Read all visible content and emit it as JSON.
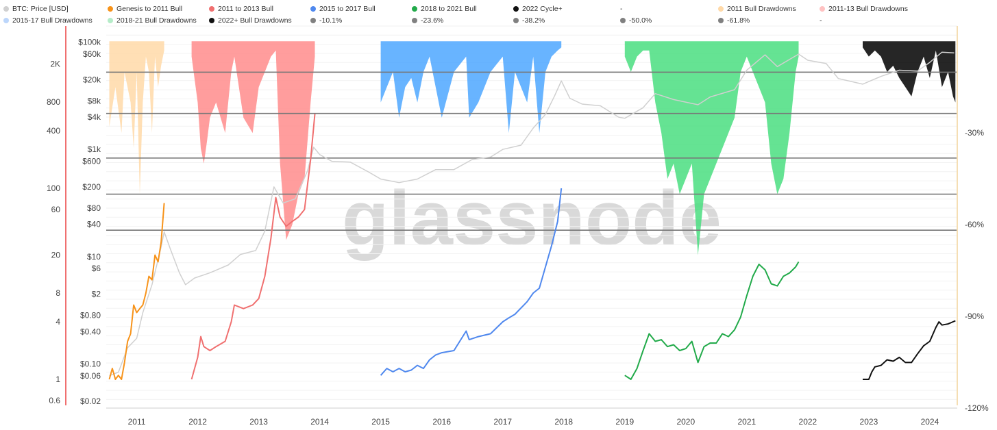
{
  "legend": [
    {
      "label": "BTC: Price [USD]",
      "color": "#d0d0d0"
    },
    {
      "label": "Genesis to 2011 Bull",
      "color": "#f7931a"
    },
    {
      "label": "2011 to 2013 Bull",
      "color": "#f07070"
    },
    {
      "label": "2015 to 2017 Bull",
      "color": "#4f88ee"
    },
    {
      "label": "2018 to 2021 Bull",
      "color": "#22aa4a"
    },
    {
      "label": "2022 Cycle+",
      "color": "#111111"
    },
    {
      "label": "-",
      "color": ""
    },
    {
      "label": "2011 Bull Drawdowns",
      "color": "#ffd9a8"
    },
    {
      "label": "2011-13 Bull Drawdowns",
      "color": "#ffc2c2"
    },
    {
      "label": "2015-17 Bull Drawdowns",
      "color": "#bcd6fb"
    },
    {
      "label": "2018-21 Bull Drawdowns",
      "color": "#b5ecc8"
    },
    {
      "label": "2022+ Bull Drawdowns",
      "color": "#111111"
    },
    {
      "label": "-10.1%",
      "color": "#808080"
    },
    {
      "label": "-23.6%",
      "color": "#808080"
    },
    {
      "label": "-38.2%",
      "color": "#808080"
    },
    {
      "label": "-50.0%",
      "color": "#808080"
    },
    {
      "label": "-61.8%",
      "color": "#808080"
    },
    {
      "label": "-",
      "color": ""
    }
  ],
  "watermark": "glassnode",
  "chart_data": {
    "type": "line",
    "x_axis": {
      "ticks": [
        "2011",
        "2012",
        "2013",
        "2014",
        "2015",
        "2016",
        "2017",
        "2018",
        "2019",
        "2020",
        "2021",
        "2022",
        "2023",
        "2024"
      ],
      "range": [
        2010.5,
        2024.45
      ]
    },
    "y_axis_cycle": {
      "scale": "log",
      "ticks": [
        "2K",
        "800",
        "400",
        "100",
        "60",
        "20",
        "8",
        "4",
        "1",
        "0.6"
      ],
      "tick_values": [
        2000,
        800,
        400,
        100,
        60,
        20,
        8,
        4,
        1,
        0.6
      ],
      "range": [
        0.5,
        5000
      ],
      "color": "#f07070"
    },
    "y_axis_price": {
      "scale": "log",
      "ticks": [
        "$100k",
        "$60k",
        "$20k",
        "$8k",
        "$4k",
        "$1k",
        "$600",
        "$200",
        "$80",
        "$40",
        "$10",
        "$6",
        "$2",
        "$0.80",
        "$0.40",
        "$0.10",
        "$0.06",
        "$0.02"
      ],
      "tick_values": [
        100000,
        60000,
        20000,
        8000,
        4000,
        1000,
        600,
        200,
        80,
        40,
        10,
        6,
        2,
        0.8,
        0.4,
        0.1,
        0.06,
        0.02
      ],
      "range": [
        0.015,
        200000
      ]
    },
    "y_axis_drawdown": {
      "ticks": [
        "-30%",
        "-60%",
        "-90%",
        "-120%"
      ],
      "tick_values": [
        -30,
        -60,
        -90,
        -120
      ],
      "range": [
        5,
        -120
      ],
      "color": "#f5deb3"
    },
    "fib_levels": [
      -10.1,
      -23.6,
      -38.2,
      -50.0,
      -61.8
    ],
    "series": [
      {
        "name": "BTC: Price [USD]",
        "color": "#d0d0d0",
        "axis": "price",
        "x": [
          2010.55,
          2010.7,
          2010.85,
          2011.0,
          2011.1,
          2011.25,
          2011.4,
          2011.45,
          2011.55,
          2011.7,
          2011.8,
          2011.95,
          2012.2,
          2012.5,
          2012.7,
          2012.95,
          2013.1,
          2013.25,
          2013.4,
          2013.6,
          2013.8,
          2013.9,
          2014.0,
          2014.2,
          2014.5,
          2014.8,
          2015.0,
          2015.3,
          2015.6,
          2015.9,
          2016.2,
          2016.5,
          2016.8,
          2017.0,
          2017.3,
          2017.5,
          2017.7,
          2017.85,
          2017.96,
          2018.1,
          2018.3,
          2018.6,
          2018.9,
          2019.0,
          2019.3,
          2019.5,
          2019.8,
          2020.2,
          2020.4,
          2020.8,
          2021.0,
          2021.3,
          2021.5,
          2021.85,
          2022.0,
          2022.3,
          2022.5,
          2022.9,
          2023.2,
          2023.5,
          2023.8,
          2024.0,
          2024.2,
          2024.4
        ],
        "y": [
          0.06,
          0.07,
          0.2,
          0.3,
          0.9,
          3,
          15,
          29,
          14,
          5,
          3,
          4,
          5,
          7,
          11,
          13,
          30,
          200,
          100,
          120,
          400,
          1100,
          800,
          600,
          580,
          380,
          280,
          240,
          280,
          420,
          420,
          650,
          720,
          1000,
          1200,
          2500,
          4500,
          10000,
          19000,
          9000,
          7000,
          6500,
          4000,
          3800,
          6000,
          11000,
          8500,
          6800,
          9500,
          13000,
          30000,
          58000,
          35000,
          60000,
          46000,
          40000,
          21000,
          16500,
          23000,
          30000,
          29000,
          42000,
          65000,
          63000
        ]
      },
      {
        "name": "Genesis to 2011 Bull",
        "color": "#f7931a",
        "axis": "cycle",
        "x": [
          2010.55,
          2010.6,
          2010.65,
          2010.7,
          2010.75,
          2010.8,
          2010.85,
          2010.9,
          2010.95,
          2011.0,
          2011.05,
          2011.1,
          2011.15,
          2011.2,
          2011.25,
          2011.3,
          2011.35,
          2011.4,
          2011.45
        ],
        "y": [
          1,
          1.3,
          1,
          1.1,
          1,
          1.5,
          2.5,
          3,
          6,
          5,
          5.5,
          6,
          8,
          12,
          11,
          20,
          17,
          27,
          70
        ]
      },
      {
        "name": "2011 to 2013 Bull",
        "color": "#f07070",
        "axis": "cycle",
        "x": [
          2011.9,
          2012.0,
          2012.05,
          2012.1,
          2012.2,
          2012.3,
          2012.45,
          2012.55,
          2012.6,
          2012.75,
          2012.9,
          2013.0,
          2013.1,
          2013.2,
          2013.28,
          2013.35,
          2013.45,
          2013.55,
          2013.65,
          2013.75,
          2013.85,
          2013.92
        ],
        "y": [
          1,
          1.7,
          2.8,
          2.2,
          2.0,
          2.2,
          2.5,
          4,
          6,
          5.5,
          6,
          7,
          12,
          30,
          80,
          50,
          40,
          45,
          50,
          60,
          200,
          600
        ]
      },
      {
        "name": "2015 to 2017 Bull",
        "color": "#4f88ee",
        "axis": "cycle",
        "x": [
          2015.0,
          2015.1,
          2015.2,
          2015.3,
          2015.4,
          2015.5,
          2015.6,
          2015.7,
          2015.8,
          2015.9,
          2016.0,
          2016.2,
          2016.4,
          2016.45,
          2016.6,
          2016.8,
          2017.0,
          2017.1,
          2017.2,
          2017.4,
          2017.5,
          2017.6,
          2017.7,
          2017.8,
          2017.9,
          2017.96
        ],
        "y": [
          1.1,
          1.3,
          1.2,
          1.3,
          1.2,
          1.25,
          1.4,
          1.3,
          1.6,
          1.8,
          1.9,
          2.0,
          3.2,
          2.6,
          2.8,
          3.0,
          4.0,
          4.4,
          4.8,
          6.5,
          8,
          9,
          15,
          25,
          45,
          100
        ]
      },
      {
        "name": "2018 to 2021 Bull",
        "color": "#22aa4a",
        "axis": "cycle",
        "x": [
          2019.0,
          2019.1,
          2019.2,
          2019.3,
          2019.4,
          2019.5,
          2019.6,
          2019.7,
          2019.8,
          2019.9,
          2020.0,
          2020.1,
          2020.2,
          2020.3,
          2020.4,
          2020.5,
          2020.6,
          2020.7,
          2020.8,
          2020.9,
          2021.0,
          2021.1,
          2021.2,
          2021.3,
          2021.4,
          2021.5,
          2021.6,
          2021.7,
          2021.8,
          2021.85
        ],
        "y": [
          1.1,
          1.0,
          1.3,
          2.0,
          3.0,
          2.5,
          2.6,
          2.2,
          2.3,
          2.0,
          2.1,
          2.5,
          1.5,
          2.2,
          2.4,
          2.4,
          3.0,
          2.8,
          3.3,
          4.5,
          7.5,
          12,
          16,
          14,
          10,
          9.5,
          12,
          13,
          15,
          17
        ]
      },
      {
        "name": "2022 Cycle+",
        "color": "#111111",
        "axis": "cycle",
        "x": [
          2022.9,
          2023.0,
          2023.05,
          2023.1,
          2023.2,
          2023.3,
          2023.4,
          2023.5,
          2023.6,
          2023.7,
          2023.8,
          2023.9,
          2024.0,
          2024.1,
          2024.15,
          2024.2,
          2024.3,
          2024.38,
          2024.42
        ],
        "y": [
          1.0,
          1.0,
          1.2,
          1.35,
          1.4,
          1.6,
          1.55,
          1.7,
          1.5,
          1.5,
          1.85,
          2.25,
          2.5,
          3.5,
          4.0,
          3.7,
          3.8,
          4.0,
          4.1
        ]
      },
      {
        "name": "2011 Bull Drawdowns",
        "color": "#ffd9a8",
        "axis": "drawdown",
        "x": [
          2010.55,
          2010.65,
          2010.75,
          2010.8,
          2010.9,
          2010.95,
          2011.0,
          2011.05,
          2011.1,
          2011.15,
          2011.2,
          2011.25,
          2011.3,
          2011.35,
          2011.4,
          2011.45
        ],
        "y": [
          -28,
          -15,
          -30,
          -10,
          -20,
          -35,
          -10,
          -50,
          -20,
          -5,
          -10,
          -30,
          -5,
          -15,
          -8,
          -3
        ]
      },
      {
        "name": "2011-13 Bull Drawdowns",
        "color": "#ff8c8c",
        "axis": "drawdown",
        "x": [
          2011.9,
          2012.0,
          2012.05,
          2012.1,
          2012.15,
          2012.2,
          2012.3,
          2012.45,
          2012.55,
          2012.6,
          2012.75,
          2012.9,
          2013.0,
          2013.1,
          2013.2,
          2013.28,
          2013.35,
          2013.45,
          2013.55,
          2013.65,
          2013.75,
          2013.85,
          2013.92
        ],
        "y": [
          -5,
          -20,
          -35,
          -40,
          -33,
          -25,
          -20,
          -30,
          -10,
          -5,
          -25,
          -30,
          -15,
          -10,
          -5,
          -3,
          -40,
          -65,
          -60,
          -50,
          -45,
          -20,
          -5
        ]
      },
      {
        "name": "2015-17 Bull Drawdowns",
        "color": "#4da7ff",
        "axis": "drawdown",
        "x": [
          2015.0,
          2015.1,
          2015.2,
          2015.3,
          2015.4,
          2015.5,
          2015.6,
          2015.7,
          2015.8,
          2015.9,
          2016.0,
          2016.2,
          2016.4,
          2016.45,
          2016.6,
          2016.8,
          2017.0,
          2017.1,
          2017.2,
          2017.4,
          2017.5,
          2017.6,
          2017.7,
          2017.8,
          2017.9,
          2017.96
        ],
        "y": [
          -20,
          -15,
          -10,
          -25,
          -15,
          -12,
          -20,
          -10,
          -5,
          -15,
          -25,
          -10,
          -5,
          -25,
          -20,
          -10,
          -5,
          -30,
          -10,
          -20,
          -5,
          -30,
          -10,
          -5,
          -3,
          -2
        ]
      },
      {
        "name": "2018-21 Bull Drawdowns",
        "color": "#4ade80",
        "axis": "drawdown",
        "x": [
          2019.0,
          2019.1,
          2019.2,
          2019.3,
          2019.4,
          2019.5,
          2019.6,
          2019.7,
          2019.8,
          2019.9,
          2020.0,
          2020.1,
          2020.2,
          2020.3,
          2020.4,
          2020.5,
          2020.6,
          2020.7,
          2020.8,
          2020.9,
          2021.0,
          2021.1,
          2021.2,
          2021.3,
          2021.4,
          2021.5,
          2021.6,
          2021.7,
          2021.8,
          2021.85
        ],
        "y": [
          -5,
          -10,
          -5,
          -3,
          -3,
          -20,
          -30,
          -45,
          -40,
          -50,
          -45,
          -40,
          -70,
          -50,
          -45,
          -40,
          -35,
          -30,
          -25,
          -10,
          -5,
          -10,
          -15,
          -20,
          -40,
          -50,
          -45,
          -30,
          -10,
          -5
        ]
      },
      {
        "name": "2022+ Bull Drawdowns",
        "color": "#000000",
        "axis": "drawdown",
        "x": [
          2022.9,
          2023.0,
          2023.1,
          2023.2,
          2023.3,
          2023.4,
          2023.5,
          2023.6,
          2023.7,
          2023.8,
          2023.9,
          2024.0,
          2024.1,
          2024.2,
          2024.3,
          2024.38,
          2024.42
        ],
        "y": [
          -2,
          -5,
          -3,
          -5,
          -10,
          -8,
          -12,
          -15,
          -18,
          -10,
          -5,
          -12,
          -3,
          -15,
          -10,
          -18,
          -20
        ]
      }
    ]
  }
}
